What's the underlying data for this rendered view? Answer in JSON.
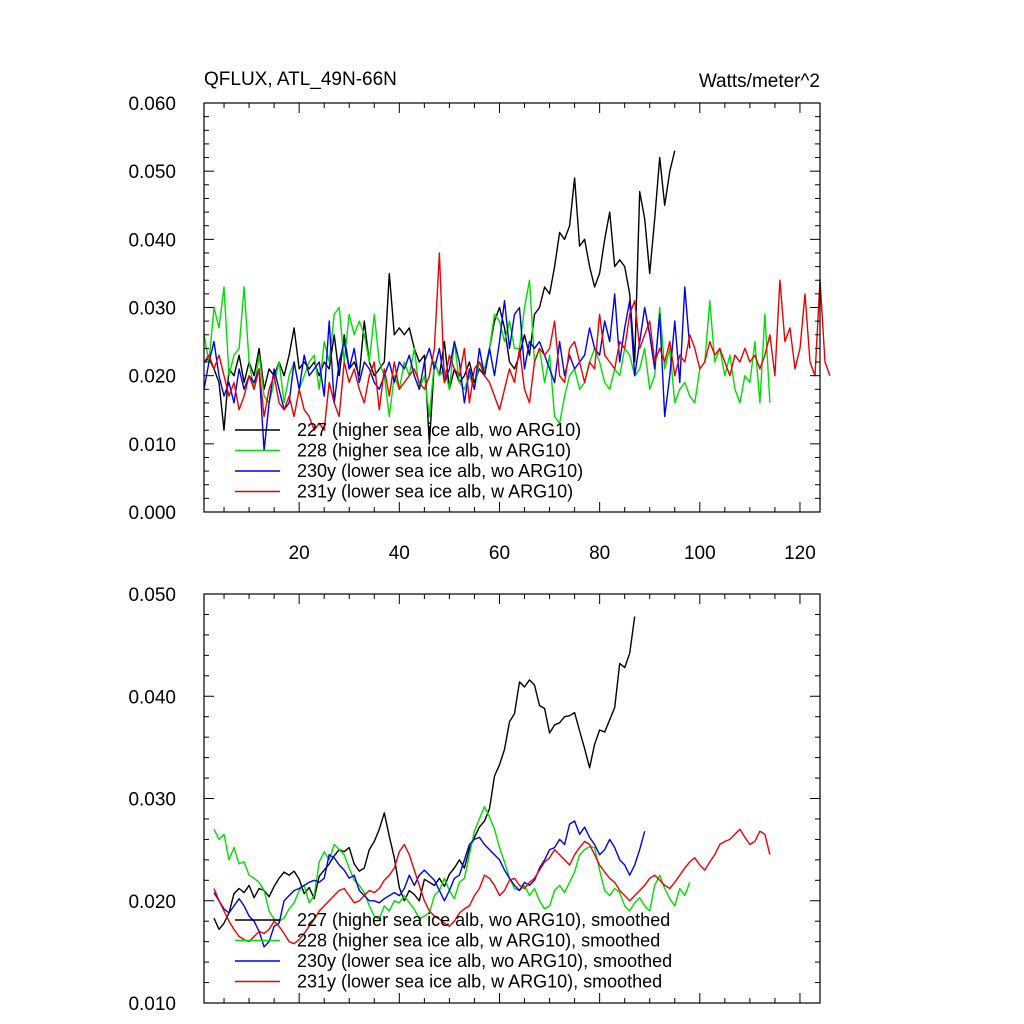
{
  "chart_data": [
    {
      "type": "line",
      "title": "QFLUX, ATL_49N-66N",
      "units": "Watts/meter^2",
      "xlim": [
        1,
        124
      ],
      "ylim": [
        0,
        0.06
      ],
      "x_ticks": [
        20,
        40,
        60,
        80,
        100,
        120
      ],
      "x_tick_labels": [
        "20",
        "40",
        "60",
        "80",
        "100",
        "120"
      ],
      "y_ticks": [
        0,
        0.01,
        0.02,
        0.03,
        0.04,
        0.05,
        0.06
      ],
      "y_tick_labels": [
        "0.000",
        "0.010",
        "0.020",
        "0.030",
        "0.040",
        "0.050",
        "0.060"
      ],
      "series": [
        {
          "name": "227 (higher sea ice alb, wo ARG10)",
          "color": "#000000",
          "x_start": 1,
          "values": [
            0.022,
            0.0225,
            0.021,
            0.019,
            0.012,
            0.021,
            0.02,
            0.023,
            0.019,
            0.022,
            0.02,
            0.024,
            0.018,
            0.021,
            0.02,
            0.022,
            0.02,
            0.023,
            0.027,
            0.021,
            0.022,
            0.021,
            0.022,
            0.02,
            0.022,
            0.021,
            0.026,
            0.02,
            0.026,
            0.021,
            0.022,
            0.02,
            0.028,
            0.022,
            0.02,
            0.021,
            0.022,
            0.035,
            0.026,
            0.027,
            0.026,
            0.027,
            0.024,
            0.022,
            0.023,
            0.01,
            0.022,
            0.02,
            0.025,
            0.018,
            0.021,
            0.019,
            0.02,
            0.022,
            0.019,
            0.021,
            0.02,
            0.024,
            0.028,
            0.03,
            0.027,
            0.022,
            0.021,
            0.023,
            0.026,
            0.023,
            0.029,
            0.03,
            0.033,
            0.032,
            0.036,
            0.041,
            0.04,
            0.042,
            0.049,
            0.039,
            0.04,
            0.036,
            0.033,
            0.035,
            0.04,
            0.044,
            0.036,
            0.037,
            0.036,
            0.032,
            0.022,
            0.047,
            0.043,
            0.035,
            0.043,
            0.052,
            0.045,
            0.05,
            0.053
          ]
        },
        {
          "name": "228 (higher sea ice alb, w ARG10)",
          "color": "#00dd00",
          "x_start": 1,
          "values": [
            0.026,
            0.022,
            0.03,
            0.027,
            0.033,
            0.02,
            0.023,
            0.024,
            0.033,
            0.022,
            0.018,
            0.023,
            0.017,
            0.016,
            0.019,
            0.022,
            0.016,
            0.02,
            0.022,
            0.018,
            0.02,
            0.022,
            0.023,
            0.018,
            0.025,
            0.022,
            0.029,
            0.03,
            0.022,
            0.029,
            0.026,
            0.028,
            0.026,
            0.022,
            0.029,
            0.022,
            0.02,
            0.014,
            0.02,
            0.018,
            0.022,
            0.02,
            0.024,
            0.018,
            0.02,
            0.014,
            0.022,
            0.02,
            0.021,
            0.018,
            0.025,
            0.019,
            0.018,
            0.02,
            0.018,
            0.022,
            0.021,
            0.024,
            0.029,
            0.028,
            0.025,
            0.028,
            0.024,
            0.024,
            0.03,
            0.034,
            0.022,
            0.024,
            0.019,
            0.023,
            0.014,
            0.013,
            0.017,
            0.02,
            0.021,
            0.018,
            0.019,
            0.022,
            0.024,
            0.022,
            0.019,
            0.018,
            0.021,
            0.02,
            0.024,
            0.023,
            0.02,
            0.021,
            0.024,
            0.018,
            0.02,
            0.03,
            0.021,
            0.024,
            0.016,
            0.018,
            0.019,
            0.017,
            0.016,
            0.021,
            0.022,
            0.031,
            0.022,
            0.024,
            0.02,
            0.023,
            0.018,
            0.016,
            0.02,
            0.019,
            0.025,
            0.016,
            0.029,
            0.016
          ]
        },
        {
          "name": "230y (lower sea ice alb, wo ARG10)",
          "color": "#0000ee",
          "x_start": 1,
          "values": [
            0.018,
            0.022,
            0.025,
            0.02,
            0.017,
            0.019,
            0.016,
            0.021,
            0.018,
            0.02,
            0.019,
            0.021,
            0.009,
            0.016,
            0.021,
            0.018,
            0.015,
            0.016,
            0.022,
            0.018,
            0.023,
            0.02,
            0.021,
            0.022,
            0.017,
            0.028,
            0.016,
            0.022,
            0.025,
            0.021,
            0.024,
            0.019,
            0.022,
            0.021,
            0.019,
            0.018,
            0.02,
            0.022,
            0.019,
            0.022,
            0.021,
            0.023,
            0.02,
            0.018,
            0.022,
            0.024,
            0.021,
            0.024,
            0.019,
            0.021,
            0.025,
            0.022,
            0.016,
            0.021,
            0.018,
            0.024,
            0.02,
            0.024,
            0.02,
            0.025,
            0.031,
            0.024,
            0.029,
            0.03,
            0.021,
            0.025,
            0.024,
            0.025,
            0.023,
            0.021,
            0.019,
            0.025,
            0.02,
            0.023,
            0.021,
            0.022,
            0.023,
            0.027,
            0.024,
            0.023,
            0.028,
            0.025,
            0.032,
            0.022,
            0.027,
            0.031,
            0.02,
            0.025,
            0.03,
            0.026,
            0.021,
            0.029,
            0.014,
            0.02,
            0.028,
            0.019,
            0.033,
            0.024
          ]
        },
        {
          "name": "231y (lower sea ice alb, w ARG10)",
          "color": "#ee0000",
          "x_start": 1,
          "values": [
            0.022,
            0.023,
            0.021,
            0.023,
            0.02,
            0.017,
            0.019,
            0.015,
            0.017,
            0.02,
            0.018,
            0.021,
            0.014,
            0.018,
            0.02,
            0.016,
            0.015,
            0.017,
            0.014,
            0.018,
            0.015,
            0.014,
            0.012,
            0.013,
            0.012,
            0.019,
            0.016,
            0.014,
            0.022,
            0.019,
            0.021,
            0.018,
            0.016,
            0.02,
            0.022,
            0.015,
            0.021,
            0.017,
            0.022,
            0.018,
            0.019,
            0.02,
            0.021,
            0.019,
            0.018,
            0.02,
            0.024,
            0.038,
            0.019,
            0.023,
            0.021,
            0.02,
            0.024,
            0.016,
            0.021,
            0.022,
            0.02,
            0.019,
            0.017,
            0.015,
            0.018,
            0.021,
            0.019,
            0.024,
            0.018,
            0.016,
            0.022,
            0.024,
            0.023,
            0.024,
            0.028,
            0.02,
            0.019,
            0.024,
            0.025,
            0.022,
            0.019,
            0.022,
            0.021,
            0.029,
            0.023,
            0.022,
            0.021,
            0.025,
            0.024,
            0.029,
            0.031,
            0.024,
            0.026,
            0.028,
            0.022,
            0.024,
            0.022,
            0.025,
            0.02,
            0.023,
            0.022,
            0.026,
            0.024,
            0.021,
            0.022,
            0.025,
            0.023,
            0.024,
            0.022,
            0.02,
            0.023,
            0.022,
            0.024,
            0.022,
            0.023,
            0.021,
            0.023,
            0.026,
            0.02,
            0.034,
            0.025,
            0.027,
            0.021,
            0.024,
            0.032,
            0.022,
            0.02,
            0.034,
            0.022,
            0.02
          ]
        }
      ]
    },
    {
      "type": "line",
      "title": "",
      "xlim": [
        1,
        124
      ],
      "ylim": [
        0.01,
        0.05
      ],
      "x_ticks": [
        20,
        40,
        60,
        80,
        100,
        120
      ],
      "x_tick_labels": [],
      "y_ticks": [
        0.01,
        0.02,
        0.03,
        0.04,
        0.05
      ],
      "y_tick_labels": [
        "0.010",
        "0.020",
        "0.030",
        "0.040",
        "0.050"
      ],
      "series": [
        {
          "name": "227 (higher sea ice alb, wo ARG10), smoothed",
          "color": "#000000",
          "x_start": 3,
          "values": [
            0.0183,
            0.0172,
            0.0178,
            0.0188,
            0.0207,
            0.0212,
            0.0208,
            0.0215,
            0.0203,
            0.0212,
            0.021,
            0.0204,
            0.0214,
            0.0222,
            0.0228,
            0.0225,
            0.0229,
            0.0221,
            0.0207,
            0.0213,
            0.0202,
            0.0224,
            0.023,
            0.0236,
            0.0244,
            0.025,
            0.0248,
            0.0252,
            0.0236,
            0.0229,
            0.0232,
            0.025,
            0.0258,
            0.027,
            0.0286,
            0.0263,
            0.0242,
            0.0213,
            0.02,
            0.021,
            0.0206,
            0.02,
            0.0221,
            0.0218,
            0.0215,
            0.0222,
            0.0214,
            0.0226,
            0.0232,
            0.024,
            0.0232,
            0.0251,
            0.0262,
            0.0272,
            0.0278,
            0.029,
            0.0322,
            0.0333,
            0.0348,
            0.0375,
            0.0383,
            0.0414,
            0.0409,
            0.0416,
            0.0411,
            0.0391,
            0.0388,
            0.0364,
            0.0372,
            0.0374,
            0.038,
            0.0381,
            0.0384,
            0.0366,
            0.0349,
            0.033,
            0.0353,
            0.0367,
            0.0365,
            0.0377,
            0.0389,
            0.0432,
            0.0428,
            0.0442,
            0.0478
          ]
        },
        {
          "name": "228 (higher sea ice alb, w ARG10), smoothed",
          "color": "#00dd00",
          "x_start": 3,
          "values": [
            0.027,
            0.026,
            0.0265,
            0.024,
            0.0252,
            0.0236,
            0.0238,
            0.0225,
            0.0222,
            0.0218,
            0.021,
            0.019,
            0.0182,
            0.018,
            0.0183,
            0.0192,
            0.0198,
            0.021,
            0.0215,
            0.0198,
            0.0205,
            0.0238,
            0.0248,
            0.024,
            0.0255,
            0.025,
            0.0245,
            0.0232,
            0.022,
            0.0215,
            0.0208,
            0.0195,
            0.0185,
            0.0182,
            0.0195,
            0.019,
            0.02,
            0.0198,
            0.0205,
            0.0198,
            0.0192,
            0.0182,
            0.0185,
            0.0188,
            0.0205,
            0.021,
            0.0222,
            0.021,
            0.0202,
            0.0218,
            0.0222,
            0.0245,
            0.0268,
            0.028,
            0.0292,
            0.0282,
            0.027,
            0.0252,
            0.0238,
            0.0222,
            0.0212,
            0.021,
            0.0215,
            0.0205,
            0.0212,
            0.02,
            0.0192,
            0.0195,
            0.021,
            0.0215,
            0.0208,
            0.0218,
            0.0228,
            0.0245,
            0.025,
            0.0253,
            0.0252,
            0.023,
            0.021,
            0.0205,
            0.0212,
            0.0208,
            0.0195,
            0.019,
            0.0198,
            0.0203,
            0.0195,
            0.019,
            0.0215,
            0.0225,
            0.0212,
            0.0202,
            0.0195,
            0.0212,
            0.0205,
            0.0218
          ]
        },
        {
          "name": "230y (lower sea ice alb, wo ARG10), smoothed",
          "color": "#0000ee",
          "x_start": 3,
          "values": [
            0.0208,
            0.02,
            0.0192,
            0.0188,
            0.0195,
            0.0202,
            0.0195,
            0.0185,
            0.018,
            0.017,
            0.0155,
            0.016,
            0.0175,
            0.0178,
            0.02,
            0.0205,
            0.021,
            0.0212,
            0.0215,
            0.0218,
            0.022,
            0.0218,
            0.0222,
            0.0245,
            0.0242,
            0.0235,
            0.023,
            0.0222,
            0.0225,
            0.021,
            0.0205,
            0.02,
            0.02,
            0.0198,
            0.0202,
            0.0205,
            0.0208,
            0.0205,
            0.0212,
            0.0225,
            0.0215,
            0.0225,
            0.023,
            0.0225,
            0.022,
            0.021,
            0.02,
            0.021,
            0.0222,
            0.0225,
            0.024,
            0.0255,
            0.026,
            0.0262,
            0.0255,
            0.025,
            0.0245,
            0.024,
            0.023,
            0.0222,
            0.0215,
            0.021,
            0.0218,
            0.0215,
            0.022,
            0.0232,
            0.024,
            0.025,
            0.0252,
            0.026,
            0.0255,
            0.0275,
            0.0278,
            0.0265,
            0.0272,
            0.0262,
            0.0255,
            0.0245,
            0.025,
            0.026,
            0.0252,
            0.024,
            0.0235,
            0.0225,
            0.0235,
            0.025,
            0.0268
          ]
        },
        {
          "name": "231y (lower sea ice alb, w ARG10), smoothed",
          "color": "#ee0000",
          "x_start": 3,
          "values": [
            0.0212,
            0.02,
            0.019,
            0.018,
            0.0172,
            0.0165,
            0.0162,
            0.016,
            0.0165,
            0.017,
            0.0168,
            0.0172,
            0.018,
            0.0175,
            0.0168,
            0.016,
            0.0158,
            0.0162,
            0.0168,
            0.0175,
            0.0182,
            0.019,
            0.0195,
            0.02,
            0.0205,
            0.021,
            0.0212,
            0.0205,
            0.0198,
            0.02,
            0.0205,
            0.021,
            0.0208,
            0.0212,
            0.022,
            0.0225,
            0.0232,
            0.0248,
            0.0255,
            0.0245,
            0.023,
            0.0215,
            0.02,
            0.019,
            0.0185,
            0.0182,
            0.0178,
            0.0175,
            0.018,
            0.0188,
            0.0192,
            0.0195,
            0.0205,
            0.0212,
            0.0225,
            0.0222,
            0.0215,
            0.0205,
            0.021,
            0.022,
            0.0222,
            0.0215,
            0.0212,
            0.0218,
            0.0222,
            0.023,
            0.0238,
            0.0242,
            0.025,
            0.0245,
            0.024,
            0.0235,
            0.0245,
            0.0252,
            0.0258,
            0.0255,
            0.0245,
            0.0235,
            0.0228,
            0.0222,
            0.0218,
            0.021,
            0.0205,
            0.02,
            0.0205,
            0.021,
            0.0215,
            0.0222,
            0.0225,
            0.022,
            0.0215,
            0.0212,
            0.0218,
            0.0225,
            0.0232,
            0.0238,
            0.0242,
            0.0235,
            0.023,
            0.0238,
            0.0245,
            0.0255,
            0.0258,
            0.026,
            0.0265,
            0.027,
            0.0262,
            0.0255,
            0.0258,
            0.0268,
            0.0265,
            0.0245
          ]
        }
      ]
    }
  ]
}
